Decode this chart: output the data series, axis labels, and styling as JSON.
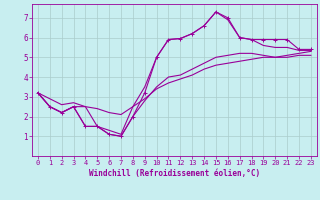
{
  "xlabel": "Windchill (Refroidissement éolien,°C)",
  "bg_color": "#c8eef0",
  "line_color": "#990099",
  "grid_color": "#aacccc",
  "x_hours": [
    0,
    1,
    2,
    3,
    4,
    5,
    6,
    7,
    8,
    9,
    10,
    11,
    12,
    13,
    14,
    15,
    16,
    17,
    18,
    19,
    20,
    21,
    22,
    23
  ],
  "line_main": [
    3.2,
    2.5,
    2.2,
    2.5,
    1.5,
    1.5,
    1.1,
    1.0,
    2.0,
    3.2,
    5.0,
    5.9,
    5.95,
    6.2,
    6.6,
    7.3,
    7.0,
    6.0,
    5.9,
    5.9,
    5.9,
    5.9,
    5.4,
    5.4
  ],
  "line_upper": [
    3.2,
    2.5,
    2.2,
    2.5,
    2.5,
    1.5,
    1.3,
    1.1,
    2.5,
    3.5,
    5.0,
    5.9,
    5.95,
    6.2,
    6.6,
    7.3,
    6.9,
    6.0,
    5.9,
    5.6,
    5.5,
    5.5,
    5.35,
    5.35
  ],
  "line_lower": [
    3.2,
    2.5,
    2.2,
    2.5,
    1.5,
    1.5,
    1.1,
    1.0,
    2.0,
    2.8,
    3.5,
    4.0,
    4.1,
    4.4,
    4.7,
    5.0,
    5.1,
    5.2,
    5.2,
    5.1,
    5.0,
    5.0,
    5.1,
    5.1
  ],
  "line_linear": [
    3.2,
    2.9,
    2.6,
    2.7,
    2.5,
    2.4,
    2.2,
    2.1,
    2.5,
    2.9,
    3.4,
    3.7,
    3.9,
    4.1,
    4.4,
    4.6,
    4.7,
    4.8,
    4.9,
    5.0,
    5.0,
    5.1,
    5.2,
    5.3
  ],
  "ylim": [
    0,
    7.7
  ],
  "xlim": [
    -0.5,
    23.5
  ],
  "yticks": [
    1,
    2,
    3,
    4,
    5,
    6,
    7
  ],
  "xticks": [
    0,
    1,
    2,
    3,
    4,
    5,
    6,
    7,
    8,
    9,
    10,
    11,
    12,
    13,
    14,
    15,
    16,
    17,
    18,
    19,
    20,
    21,
    22,
    23
  ],
  "lw": 0.8,
  "marker_size": 2.5,
  "tick_fontsize": 5.0,
  "xlabel_fontsize": 5.5
}
